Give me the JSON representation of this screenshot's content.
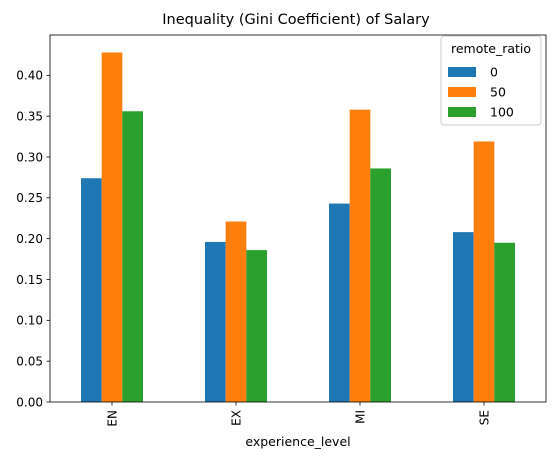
{
  "chart_data": {
    "type": "bar",
    "title": "Inequality (Gini Coefficient) of Salary",
    "xlabel": "experience_level",
    "ylabel": "",
    "categories": [
      "EN",
      "EX",
      "MI",
      "SE"
    ],
    "series": [
      {
        "name": "0",
        "color": "#1f77b4",
        "values": [
          0.274,
          0.196,
          0.243,
          0.208
        ]
      },
      {
        "name": "50",
        "color": "#ff7f0e",
        "values": [
          0.428,
          0.221,
          0.358,
          0.319
        ]
      },
      {
        "name": "100",
        "color": "#2ca02c",
        "values": [
          0.356,
          0.186,
          0.286,
          0.195
        ]
      }
    ],
    "ylim": [
      0,
      0.4494
    ],
    "yticks": [
      "0.00",
      "0.05",
      "0.10",
      "0.15",
      "0.20",
      "0.25",
      "0.30",
      "0.35",
      "0.40"
    ],
    "legend": {
      "title": "remote_ratio",
      "placement": "top-right"
    },
    "grid": false
  }
}
